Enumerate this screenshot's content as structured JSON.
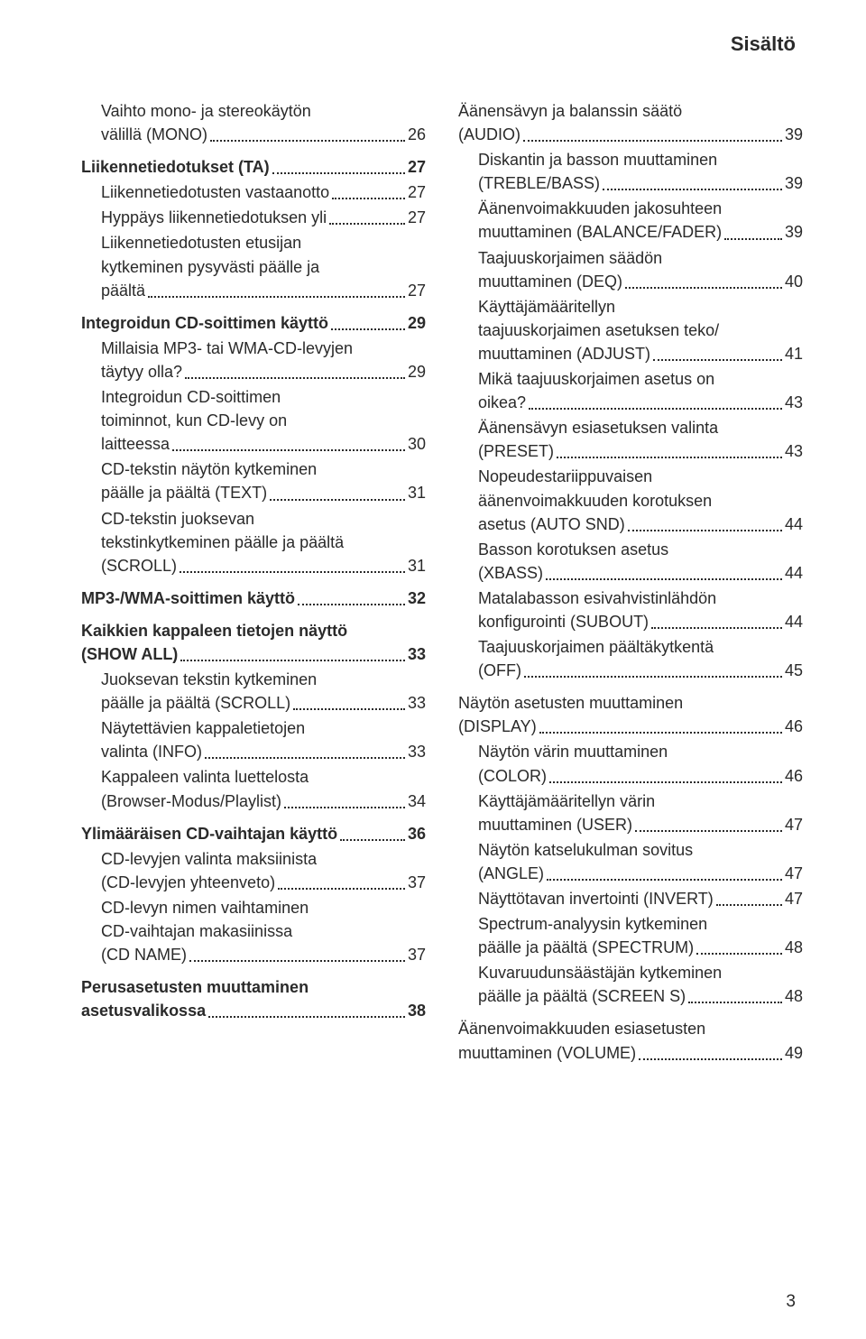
{
  "page": {
    "header": "Sisältö",
    "pagenum": "3"
  },
  "left": [
    {
      "lines": [
        "Vaihto mono- ja stereokäytön",
        "välillä (MONO)"
      ],
      "pg": "26",
      "bold": false,
      "indent": true,
      "gap": false
    },
    {
      "lines": [
        "Liikennetiedotukset (TA)"
      ],
      "pg": "27",
      "bold": true,
      "indent": false,
      "gap": true
    },
    {
      "lines": [
        "Liikennetiedotusten vastaanotto"
      ],
      "pg": "27",
      "bold": false,
      "indent": true,
      "gap": false
    },
    {
      "lines": [
        "Hyppäys liikennetiedotuksen yli"
      ],
      "pg": "27",
      "bold": false,
      "indent": true,
      "gap": false
    },
    {
      "lines": [
        "Liikennetiedotusten etusijan",
        "kytkeminen pysyvästi päälle ja",
        "päältä"
      ],
      "pg": "27",
      "bold": false,
      "indent": true,
      "gap": false
    },
    {
      "lines": [
        "Integroidun CD-soittimen käyttö"
      ],
      "pg": "29",
      "bold": true,
      "indent": false,
      "gap": true
    },
    {
      "lines": [
        "Millaisia MP3- tai WMA-CD-levyjen",
        "täytyy olla?"
      ],
      "pg": "29",
      "bold": false,
      "indent": true,
      "gap": false
    },
    {
      "lines": [
        "Integroidun CD-soittimen",
        "toiminnot, kun CD-levy on",
        "laitteessa"
      ],
      "pg": "30",
      "bold": false,
      "indent": true,
      "gap": false
    },
    {
      "lines": [
        "CD-tekstin näytön kytkeminen",
        "päälle ja päältä (TEXT)"
      ],
      "pg": "31",
      "bold": false,
      "indent": true,
      "gap": false
    },
    {
      "lines": [
        "CD-tekstin juoksevan",
        "tekstinkytkeminen päälle ja päältä",
        "(SCROLL)"
      ],
      "pg": "31",
      "bold": false,
      "indent": true,
      "gap": false
    },
    {
      "lines": [
        "MP3-/WMA-soittimen käyttö"
      ],
      "pg": "32",
      "bold": true,
      "indent": false,
      "gap": true
    },
    {
      "lines": [
        "Kaikkien kappaleen tietojen näyttö",
        "(SHOW ALL)"
      ],
      "pg": "33",
      "bold": true,
      "indent": false,
      "gap": true
    },
    {
      "lines": [
        "Juoksevan tekstin kytkeminen",
        "päälle ja päältä (SCROLL)"
      ],
      "pg": "33",
      "bold": false,
      "indent": true,
      "gap": false
    },
    {
      "lines": [
        "Näytettävien kappaletietojen",
        "valinta (INFO)"
      ],
      "pg": "33",
      "bold": false,
      "indent": true,
      "gap": false
    },
    {
      "lines": [
        "Kappaleen valinta luettelosta",
        "(Browser-Modus/Playlist)"
      ],
      "pg": "34",
      "bold": false,
      "indent": true,
      "gap": false
    },
    {
      "lines": [
        "Ylimääräisen CD-vaihtajan käyttö"
      ],
      "pg": "36",
      "bold": true,
      "indent": false,
      "gap": true
    },
    {
      "lines": [
        "CD-levyjen valinta maksiinista",
        "(CD-levyjen yhteenveto)"
      ],
      "pg": "37",
      "bold": false,
      "indent": true,
      "gap": false
    },
    {
      "lines": [
        "CD-levyn nimen vaihtaminen",
        "CD-vaihtajan makasiinissa",
        "(CD NAME)"
      ],
      "pg": "37",
      "bold": false,
      "indent": true,
      "gap": false
    },
    {
      "lines": [
        "Perusasetusten muuttaminen",
        "asetusvalikossa"
      ],
      "pg": "38",
      "bold": true,
      "indent": false,
      "gap": true
    }
  ],
  "right": [
    {
      "lines": [
        "Äänensävyn ja balanssin säätö",
        "(AUDIO)"
      ],
      "pg": "39",
      "bold": false,
      "indent": false,
      "gap": false
    },
    {
      "lines": [
        "Diskantin ja basson muuttaminen",
        "(TREBLE/BASS)"
      ],
      "pg": "39",
      "bold": false,
      "indent": true,
      "gap": false
    },
    {
      "lines": [
        "Äänenvoimakkuuden jakosuhteen",
        "muuttaminen (BALANCE/FADER)"
      ],
      "pg": "39",
      "bold": false,
      "indent": true,
      "gap": false
    },
    {
      "lines": [
        "Taajuuskorjaimen säädön",
        "muuttaminen (DEQ)"
      ],
      "pg": "40",
      "bold": false,
      "indent": true,
      "gap": false
    },
    {
      "lines": [
        "Käyttäjämääritellyn",
        "taajuuskorjaimen asetuksen teko/",
        "muuttaminen (ADJUST)"
      ],
      "pg": "41",
      "bold": false,
      "indent": true,
      "gap": false
    },
    {
      "lines": [
        "Mikä taajuuskorjaimen asetus on",
        "oikea?"
      ],
      "pg": "43",
      "bold": false,
      "indent": true,
      "gap": false
    },
    {
      "lines": [
        "Äänensävyn esiasetuksen valinta",
        "(PRESET)"
      ],
      "pg": "43",
      "bold": false,
      "indent": true,
      "gap": false
    },
    {
      "lines": [
        "Nopeudestariippuvaisen",
        "äänenvoimakkuuden korotuksen",
        "asetus (AUTO SND)"
      ],
      "pg": "44",
      "bold": false,
      "indent": true,
      "gap": false
    },
    {
      "lines": [
        "Basson korotuksen asetus",
        "(XBASS)"
      ],
      "pg": "44",
      "bold": false,
      "indent": true,
      "gap": false
    },
    {
      "lines": [
        "Matalabasson esivahvistinlähdön",
        "konfigurointi (SUBOUT)"
      ],
      "pg": "44",
      "bold": false,
      "indent": true,
      "gap": false
    },
    {
      "lines": [
        "Taajuuskorjaimen päältäkytkentä",
        "(OFF)"
      ],
      "pg": "45",
      "bold": false,
      "indent": true,
      "gap": false
    },
    {
      "lines": [
        "Näytön asetusten muuttaminen",
        "(DISPLAY)"
      ],
      "pg": "46",
      "bold": false,
      "indent": false,
      "gap": true
    },
    {
      "lines": [
        "Näytön värin muuttaminen",
        "(COLOR)"
      ],
      "pg": "46",
      "bold": false,
      "indent": true,
      "gap": false
    },
    {
      "lines": [
        "Käyttäjämääritellyn värin",
        "muuttaminen (USER)"
      ],
      "pg": "47",
      "bold": false,
      "indent": true,
      "gap": false
    },
    {
      "lines": [
        "Näytön katselukulman sovitus",
        "(ANGLE)"
      ],
      "pg": "47",
      "bold": false,
      "indent": true,
      "gap": false
    },
    {
      "lines": [
        "Näyttötavan invertointi (INVERT)"
      ],
      "pg": "47",
      "bold": false,
      "indent": true,
      "gap": false
    },
    {
      "lines": [
        "Spectrum-analyysin kytkeminen",
        "päälle ja päältä (SPECTRUM)"
      ],
      "pg": "48",
      "bold": false,
      "indent": true,
      "gap": false
    },
    {
      "lines": [
        "Kuvaruudunsäästäjän kytkeminen",
        "päälle ja päältä (SCREEN S)"
      ],
      "pg": "48",
      "bold": false,
      "indent": true,
      "gap": false
    },
    {
      "lines": [
        "Äänenvoimakkuuden esiasetusten",
        "muuttaminen (VOLUME)"
      ],
      "pg": "49",
      "bold": false,
      "indent": false,
      "gap": true
    }
  ]
}
